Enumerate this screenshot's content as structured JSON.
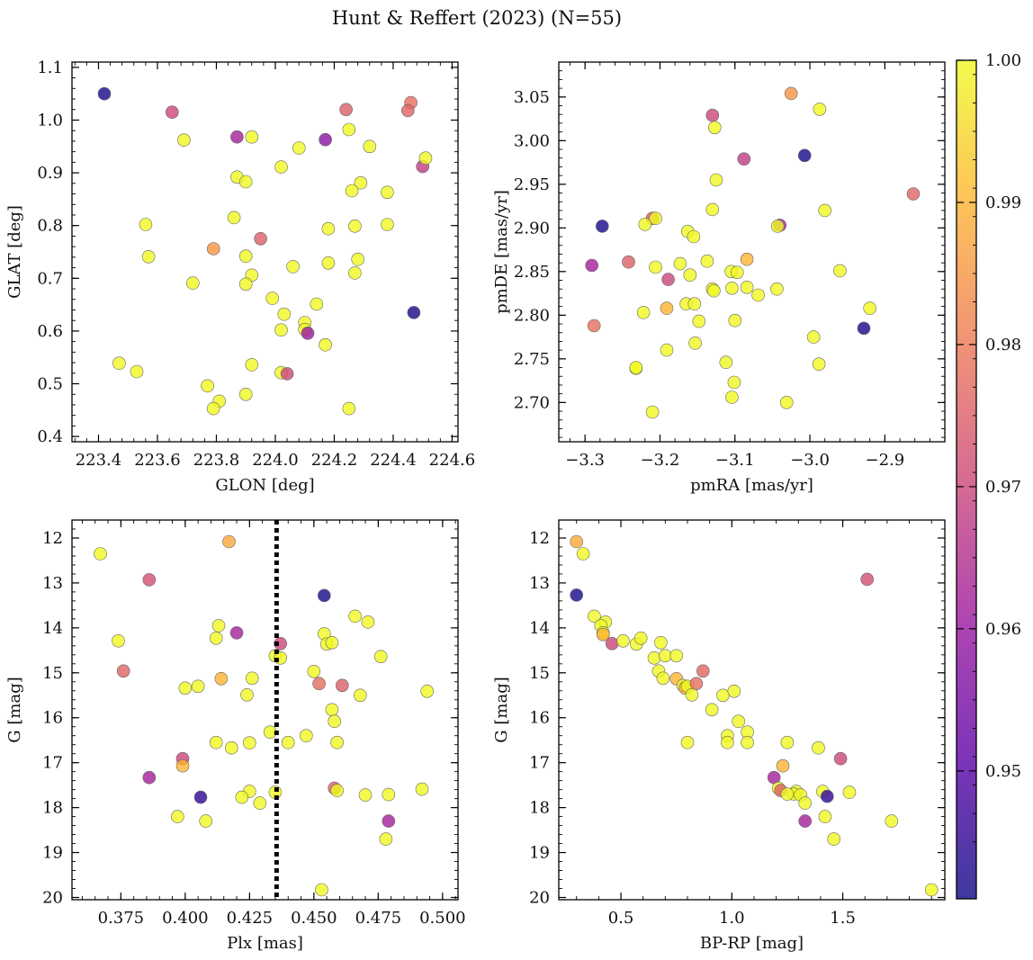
{
  "figure": {
    "title": "Hunt & Reffert (2023) (N=55)"
  },
  "colormap": {
    "name": "plasma",
    "range": [
      0.941,
      1.0
    ],
    "stops": [
      "#0d0887",
      "#5c01a6",
      "#9c179e",
      "#cc4778",
      "#ed7953",
      "#fdb42f",
      "#f0f921"
    ],
    "ticks": [
      0.95,
      0.96,
      0.97,
      0.98,
      0.99,
      1.0
    ],
    "tick_labels": [
      "0.95",
      "0.96",
      "0.97",
      "0.98",
      "0.99",
      "1.00"
    ]
  },
  "chart_data": [
    {
      "id": "glon-glat",
      "type": "scatter",
      "xlabel": "GLON [deg]",
      "ylabel": "GLAT [deg]",
      "xlim": [
        223.31,
        224.62
      ],
      "ylim": [
        0.39,
        1.11
      ],
      "xticks": [
        223.4,
        223.6,
        223.8,
        224.0,
        224.2,
        224.4,
        224.6
      ],
      "xtick_labels": [
        "223.4",
        "223.6",
        "223.8",
        "224.0",
        "224.2",
        "224.4",
        "224.6"
      ],
      "yticks": [
        0.4,
        0.5,
        0.6,
        0.7,
        0.8,
        0.9,
        1.0,
        1.1
      ],
      "ytick_labels": [
        "0.4",
        "0.5",
        "0.6",
        "0.7",
        "0.8",
        "0.9",
        "1.0",
        "1.1"
      ],
      "invert_y": false,
      "points": [
        [
          223.42,
          1.05,
          0.942
        ],
        [
          223.65,
          1.015,
          0.97
        ],
        [
          223.69,
          0.962,
          1.0
        ],
        [
          223.87,
          0.968,
          0.962
        ],
        [
          223.92,
          0.968,
          1.0
        ],
        [
          224.17,
          0.963,
          0.958
        ],
        [
          224.24,
          1.02,
          0.975
        ],
        [
          224.46,
          1.033,
          0.978
        ],
        [
          224.45,
          1.018,
          0.976
        ],
        [
          224.25,
          0.982,
          1.0
        ],
        [
          224.5,
          0.912,
          0.968
        ],
        [
          224.51,
          0.928,
          1.0
        ],
        [
          224.32,
          0.95,
          1.0
        ],
        [
          224.08,
          0.947,
          1.0
        ],
        [
          224.02,
          0.911,
          1.0
        ],
        [
          223.87,
          0.892,
          1.0
        ],
        [
          223.9,
          0.883,
          1.0
        ],
        [
          224.29,
          0.881,
          1.0
        ],
        [
          224.26,
          0.866,
          1.0
        ],
        [
          224.38,
          0.863,
          1.0
        ],
        [
          223.86,
          0.815,
          1.0
        ],
        [
          223.56,
          0.802,
          1.0
        ],
        [
          224.38,
          0.802,
          1.0
        ],
        [
          224.27,
          0.799,
          1.0
        ],
        [
          224.18,
          0.794,
          1.0
        ],
        [
          223.95,
          0.775,
          0.975
        ],
        [
          223.79,
          0.756,
          0.985
        ],
        [
          223.57,
          0.741,
          1.0
        ],
        [
          223.9,
          0.742,
          1.0
        ],
        [
          224.28,
          0.736,
          1.0
        ],
        [
          224.18,
          0.729,
          1.0
        ],
        [
          224.06,
          0.722,
          1.0
        ],
        [
          224.27,
          0.71,
          1.0
        ],
        [
          223.92,
          0.706,
          1.0
        ],
        [
          223.72,
          0.691,
          1.0
        ],
        [
          223.9,
          0.689,
          1.0
        ],
        [
          223.99,
          0.662,
          1.0
        ],
        [
          224.14,
          0.651,
          1.0
        ],
        [
          224.47,
          0.635,
          0.942
        ],
        [
          224.03,
          0.632,
          1.0
        ],
        [
          224.1,
          0.616,
          1.0
        ],
        [
          224.02,
          0.602,
          1.0
        ],
        [
          224.1,
          0.603,
          1.0
        ],
        [
          224.11,
          0.596,
          0.96
        ],
        [
          224.17,
          0.574,
          1.0
        ],
        [
          223.47,
          0.539,
          1.0
        ],
        [
          223.92,
          0.536,
          1.0
        ],
        [
          223.53,
          0.523,
          1.0
        ],
        [
          224.02,
          0.521,
          1.0
        ],
        [
          224.04,
          0.519,
          0.97
        ],
        [
          223.77,
          0.496,
          1.0
        ],
        [
          223.9,
          0.48,
          1.0
        ],
        [
          223.81,
          0.467,
          1.0
        ],
        [
          223.79,
          0.453,
          1.0
        ],
        [
          224.25,
          0.453,
          1.0
        ]
      ]
    },
    {
      "id": "pmra-pmde",
      "type": "scatter",
      "xlabel": "pmRA [mas/yr]",
      "ylabel": "pmDE [mas/yr]",
      "xlim": [
        -3.335,
        -2.82
      ],
      "ylim": [
        2.655,
        3.09
      ],
      "xticks": [
        -3.3,
        -3.2,
        -3.1,
        -3.0,
        -2.9
      ],
      "xtick_labels": [
        "−3.3",
        "−3.2",
        "−3.1",
        "−3.0",
        "−2.9"
      ],
      "yticks": [
        2.7,
        2.75,
        2.8,
        2.85,
        2.9,
        2.95,
        3.0,
        3.05
      ],
      "ytick_labels": [
        "2.70",
        "2.75",
        "2.80",
        "2.85",
        "2.90",
        "2.95",
        "3.00",
        "3.05"
      ],
      "invert_y": false,
      "points": [
        [
          -3.025,
          3.054,
          0.985
        ],
        [
          -2.987,
          3.036,
          1.0
        ],
        [
          -3.13,
          3.029,
          0.97
        ],
        [
          -3.127,
          3.015,
          1.0
        ],
        [
          -3.007,
          2.983,
          0.942
        ],
        [
          -3.088,
          2.979,
          0.968
        ],
        [
          -3.125,
          2.955,
          1.0
        ],
        [
          -2.862,
          2.939,
          0.976
        ],
        [
          -3.13,
          2.921,
          1.0
        ],
        [
          -2.98,
          2.92,
          1.0
        ],
        [
          -3.21,
          2.911,
          0.975
        ],
        [
          -3.206,
          2.911,
          1.0
        ],
        [
          -3.277,
          2.902,
          0.942
        ],
        [
          -3.22,
          2.904,
          1.0
        ],
        [
          -3.04,
          2.903,
          0.962
        ],
        [
          -3.043,
          2.902,
          1.0
        ],
        [
          -3.163,
          2.896,
          1.0
        ],
        [
          -3.155,
          2.89,
          1.0
        ],
        [
          -3.291,
          2.857,
          0.962
        ],
        [
          -3.242,
          2.861,
          0.975
        ],
        [
          -3.206,
          2.855,
          1.0
        ],
        [
          -3.173,
          2.859,
          1.0
        ],
        [
          -3.137,
          2.862,
          1.0
        ],
        [
          -3.084,
          2.864,
          0.99
        ],
        [
          -3.16,
          2.846,
          1.0
        ],
        [
          -3.105,
          2.85,
          1.0
        ],
        [
          -3.097,
          2.849,
          1.0
        ],
        [
          -2.96,
          2.851,
          1.0
        ],
        [
          -3.189,
          2.841,
          0.97
        ],
        [
          -3.104,
          2.831,
          1.0
        ],
        [
          -3.13,
          2.83,
          1.0
        ],
        [
          -3.128,
          2.828,
          1.0
        ],
        [
          -3.084,
          2.832,
          1.0
        ],
        [
          -3.044,
          2.83,
          1.0
        ],
        [
          -3.069,
          2.823,
          1.0
        ],
        [
          -3.165,
          2.813,
          1.0
        ],
        [
          -3.154,
          2.813,
          1.0
        ],
        [
          -3.191,
          2.808,
          0.99
        ],
        [
          -3.222,
          2.803,
          1.0
        ],
        [
          -3.288,
          2.788,
          0.978
        ],
        [
          -2.92,
          2.808,
          1.0
        ],
        [
          -3.148,
          2.793,
          1.0
        ],
        [
          -3.1,
          2.794,
          1.0
        ],
        [
          -2.928,
          2.785,
          0.942
        ],
        [
          -2.995,
          2.775,
          1.0
        ],
        [
          -3.153,
          2.768,
          1.0
        ],
        [
          -3.191,
          2.76,
          1.0
        ],
        [
          -3.112,
          2.746,
          1.0
        ],
        [
          -2.988,
          2.744,
          1.0
        ],
        [
          -3.232,
          2.739,
          1.0
        ],
        [
          -3.101,
          2.723,
          1.0
        ],
        [
          -3.104,
          2.706,
          1.0
        ],
        [
          -3.031,
          2.7,
          1.0
        ],
        [
          -3.21,
          2.689,
          1.0
        ],
        [
          -3.232,
          2.74,
          1.0
        ]
      ]
    },
    {
      "id": "plx-g",
      "type": "scatter",
      "xlabel": "Plx [mas]",
      "ylabel": "G [mag]",
      "xlim": [
        0.356,
        0.506
      ],
      "ylim": [
        20.05,
        11.6
      ],
      "xticks": [
        0.375,
        0.4,
        0.425,
        0.45,
        0.475,
        0.5
      ],
      "xtick_labels": [
        "0.375",
        "0.400",
        "0.425",
        "0.450",
        "0.475",
        "0.500"
      ],
      "yticks": [
        12,
        13,
        14,
        15,
        16,
        17,
        18,
        19,
        20
      ],
      "ytick_labels": [
        "12",
        "13",
        "14",
        "15",
        "16",
        "17",
        "18",
        "19",
        "20"
      ],
      "invert_y": true,
      "vline": 0.4355,
      "points": [
        [
          0.367,
          12.35,
          1.0
        ],
        [
          0.417,
          12.08,
          0.988
        ],
        [
          0.386,
          12.93,
          0.972
        ],
        [
          0.454,
          13.28,
          0.942
        ],
        [
          0.374,
          14.29,
          1.0
        ],
        [
          0.466,
          13.74,
          1.0
        ],
        [
          0.471,
          13.87,
          1.0
        ],
        [
          0.413,
          13.95,
          1.0
        ],
        [
          0.412,
          14.23,
          1.0
        ],
        [
          0.42,
          14.11,
          0.962
        ],
        [
          0.454,
          14.13,
          1.0
        ],
        [
          0.455,
          14.36,
          1.0
        ],
        [
          0.457,
          14.33,
          1.0
        ],
        [
          0.437,
          14.35,
          0.97
        ],
        [
          0.435,
          14.62,
          1.0
        ],
        [
          0.437,
          14.67,
          1.0
        ],
        [
          0.476,
          14.64,
          1.0
        ],
        [
          0.376,
          14.96,
          0.976
        ],
        [
          0.414,
          15.13,
          0.99
        ],
        [
          0.426,
          15.12,
          1.0
        ],
        [
          0.45,
          14.97,
          1.0
        ],
        [
          0.452,
          15.24,
          0.978
        ],
        [
          0.461,
          15.28,
          0.975
        ],
        [
          0.4,
          15.34,
          1.0
        ],
        [
          0.405,
          15.3,
          1.0
        ],
        [
          0.424,
          15.49,
          1.0
        ],
        [
          0.468,
          15.5,
          1.0
        ],
        [
          0.494,
          15.41,
          1.0
        ],
        [
          0.457,
          15.82,
          1.0
        ],
        [
          0.458,
          16.08,
          1.0
        ],
        [
          0.433,
          16.32,
          1.0
        ],
        [
          0.447,
          16.4,
          1.0
        ],
        [
          0.44,
          16.55,
          1.0
        ],
        [
          0.412,
          16.55,
          1.0
        ],
        [
          0.418,
          16.67,
          1.0
        ],
        [
          0.425,
          16.56,
          1.0
        ],
        [
          0.459,
          16.55,
          1.0
        ],
        [
          0.399,
          16.91,
          0.97
        ],
        [
          0.399,
          17.07,
          0.99
        ],
        [
          0.386,
          17.33,
          0.962
        ],
        [
          0.458,
          17.57,
          0.975
        ],
        [
          0.459,
          17.62,
          1.0
        ],
        [
          0.425,
          17.64,
          1.0
        ],
        [
          0.435,
          17.66,
          1.0
        ],
        [
          0.406,
          17.77,
          0.945
        ],
        [
          0.422,
          17.77,
          1.0
        ],
        [
          0.429,
          17.9,
          1.0
        ],
        [
          0.47,
          17.72,
          1.0
        ],
        [
          0.479,
          17.71,
          1.0
        ],
        [
          0.492,
          17.59,
          1.0
        ],
        [
          0.397,
          18.2,
          1.0
        ],
        [
          0.408,
          18.3,
          1.0
        ],
        [
          0.479,
          18.3,
          0.962
        ],
        [
          0.478,
          18.7,
          1.0
        ],
        [
          0.453,
          19.83,
          1.0
        ]
      ]
    },
    {
      "id": "bprp-g",
      "type": "scatter",
      "xlabel": "BP-RP [mag]",
      "ylabel": "G [mag]",
      "xlim": [
        0.22,
        1.96
      ],
      "ylim": [
        20.05,
        11.6
      ],
      "xticks": [
        0.5,
        1.0,
        1.5
      ],
      "xtick_labels": [
        "0.5",
        "1.0",
        "1.5"
      ],
      "yticks": [
        12,
        13,
        14,
        15,
        16,
        17,
        18,
        19,
        20
      ],
      "ytick_labels": [
        "12",
        "13",
        "14",
        "15",
        "16",
        "17",
        "18",
        "19",
        "20"
      ],
      "invert_y": true,
      "points": [
        [
          0.3,
          12.08,
          0.988
        ],
        [
          0.33,
          12.35,
          1.0
        ],
        [
          0.3,
          13.27,
          0.942
        ],
        [
          1.61,
          12.92,
          0.972
        ],
        [
          0.38,
          13.74,
          1.0
        ],
        [
          0.43,
          13.87,
          1.0
        ],
        [
          0.41,
          13.95,
          1.0
        ],
        [
          0.42,
          14.11,
          1.0
        ],
        [
          0.42,
          14.15,
          0.99
        ],
        [
          0.46,
          14.35,
          0.97
        ],
        [
          0.51,
          14.29,
          1.0
        ],
        [
          0.57,
          14.36,
          1.0
        ],
        [
          0.59,
          14.23,
          1.0
        ],
        [
          0.65,
          14.67,
          1.0
        ],
        [
          0.68,
          14.33,
          1.0
        ],
        [
          0.7,
          14.62,
          1.0
        ],
        [
          0.75,
          14.62,
          1.0
        ],
        [
          0.87,
          14.96,
          0.976
        ],
        [
          0.67,
          14.96,
          1.0
        ],
        [
          0.69,
          15.12,
          1.0
        ],
        [
          0.75,
          15.13,
          0.99
        ],
        [
          0.78,
          15.28,
          1.0
        ],
        [
          0.79,
          15.34,
          0.99
        ],
        [
          0.8,
          15.3,
          1.0
        ],
        [
          0.84,
          15.24,
          0.978
        ],
        [
          0.82,
          15.49,
          1.0
        ],
        [
          0.96,
          15.5,
          1.0
        ],
        [
          1.01,
          15.41,
          1.0
        ],
        [
          0.91,
          15.82,
          1.0
        ],
        [
          1.03,
          16.08,
          1.0
        ],
        [
          1.07,
          16.32,
          1.0
        ],
        [
          0.98,
          16.4,
          1.0
        ],
        [
          0.8,
          16.55,
          1.0
        ],
        [
          0.98,
          16.55,
          1.0
        ],
        [
          1.07,
          16.55,
          1.0
        ],
        [
          1.25,
          16.55,
          1.0
        ],
        [
          1.39,
          16.67,
          1.0
        ],
        [
          1.49,
          16.91,
          0.97
        ],
        [
          1.23,
          17.07,
          0.99
        ],
        [
          1.19,
          17.33,
          0.962
        ],
        [
          1.21,
          17.57,
          1.0
        ],
        [
          1.22,
          17.62,
          0.975
        ],
        [
          1.29,
          17.64,
          1.0
        ],
        [
          1.28,
          17.7,
          1.0
        ],
        [
          1.31,
          17.72,
          1.0
        ],
        [
          1.41,
          17.64,
          1.0
        ],
        [
          1.43,
          17.75,
          0.945
        ],
        [
          1.53,
          17.66,
          1.0
        ],
        [
          1.33,
          17.9,
          1.0
        ],
        [
          1.42,
          18.2,
          1.0
        ],
        [
          1.33,
          18.3,
          0.962
        ],
        [
          1.72,
          18.3,
          1.0
        ],
        [
          1.46,
          18.7,
          1.0
        ],
        [
          1.9,
          19.83,
          1.0
        ],
        [
          1.25,
          17.7,
          1.0
        ]
      ]
    }
  ]
}
